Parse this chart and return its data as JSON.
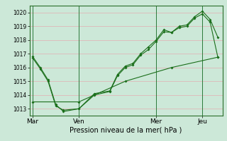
{
  "background_color": "#cce8d8",
  "grid_color": "#e8a0a8",
  "line_color": "#1a6e1a",
  "xlabel": "Pression niveau de la mer( hPa )",
  "xtick_labels": [
    "Mar",
    "Ven",
    "Mer",
    "Jeu"
  ],
  "xtick_positions": [
    0,
    3,
    8,
    11
  ],
  "ylim": [
    1012.5,
    1020.5
  ],
  "xlim": [
    -0.2,
    12.3
  ],
  "yticks": [
    1013,
    1014,
    1015,
    1016,
    1017,
    1018,
    1019,
    1020
  ],
  "line1_x": [
    0,
    0.5,
    1.0,
    1.5,
    2.0,
    3.0,
    4.0,
    5.0,
    5.5,
    6.0,
    6.5,
    7.0,
    7.5,
    8.0,
    8.5,
    9.0,
    9.5,
    10.0,
    10.5,
    11.0,
    11.5,
    12.0
  ],
  "line1_y": [
    1016.8,
    1016.0,
    1015.1,
    1013.3,
    1012.8,
    1013.0,
    1014.1,
    1014.3,
    1015.5,
    1016.1,
    1016.3,
    1017.0,
    1017.5,
    1018.0,
    1018.75,
    1018.55,
    1019.0,
    1019.1,
    1019.7,
    1020.1,
    1019.5,
    1018.2
  ],
  "line2_x": [
    0,
    0.5,
    1.0,
    1.5,
    2.0,
    3.0,
    4.0,
    5.0,
    5.5,
    6.0,
    6.5,
    7.0,
    7.5,
    8.0,
    8.5,
    9.0,
    9.5,
    10.0,
    10.5,
    11.0,
    11.5,
    12.0
  ],
  "line2_y": [
    1016.7,
    1015.9,
    1015.0,
    1013.2,
    1012.9,
    1013.0,
    1014.0,
    1014.25,
    1015.4,
    1016.0,
    1016.2,
    1016.9,
    1017.3,
    1017.9,
    1018.6,
    1018.55,
    1018.9,
    1019.0,
    1019.6,
    1019.9,
    1019.3,
    1016.75
  ],
  "line3_x": [
    0,
    3.0,
    6.0,
    9.0,
    12.0
  ],
  "line3_y": [
    1013.5,
    1013.5,
    1015.0,
    1016.0,
    1016.75
  ],
  "vline_positions": [
    0,
    3,
    8,
    11
  ],
  "marker_size": 2.0,
  "linewidth": 0.8
}
